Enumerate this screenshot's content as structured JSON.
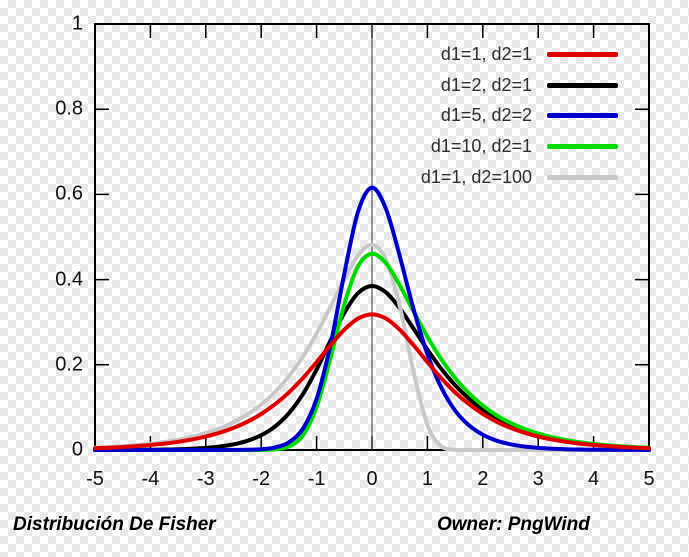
{
  "figure": {
    "checker_color": "#e8e8e8",
    "background_color": "#ffffff"
  },
  "captions": {
    "left": "Distribución De Fisher",
    "right": "Owner: PngWind"
  },
  "chart_data": {
    "type": "line",
    "title": "",
    "xlabel": "",
    "ylabel": "",
    "xlim": [
      -5,
      5
    ],
    "ylim": [
      0,
      1
    ],
    "grid": false,
    "legend_position": "top-right",
    "frame_color": "#000000",
    "zero_axis_x": 0,
    "zero_axis_color": "#333333",
    "x_ticks": [
      -5,
      -4,
      -3,
      -2,
      -1,
      0,
      1,
      2,
      3,
      4,
      5
    ],
    "x_tick_labels": [
      "-5",
      "-4",
      "-3",
      "-2",
      "-1",
      "0",
      "1",
      "2",
      "3",
      "4",
      "5"
    ],
    "y_ticks": [
      0,
      0.2,
      0.4,
      0.6,
      0.8,
      1
    ],
    "y_tick_labels": [
      "0",
      "0.2",
      "0.4",
      "0.6",
      "0.8",
      "1"
    ],
    "x": [
      -5,
      -4.75,
      -4.5,
      -4.25,
      -4,
      -3.75,
      -3.5,
      -3.25,
      -3,
      -2.75,
      -2.5,
      -2.25,
      -2,
      -1.75,
      -1.5,
      -1.25,
      -1,
      -0.75,
      -0.5,
      -0.25,
      0,
      0.25,
      0.5,
      0.75,
      1,
      1.25,
      1.5,
      1.75,
      2,
      2.25,
      2.5,
      2.75,
      3,
      3.25,
      3.5,
      3.75,
      4,
      4.25,
      4.5,
      4.75,
      5
    ],
    "series": [
      {
        "name": "d1=1, d2=1",
        "color": "#e00000",
        "peak": 0.318,
        "values": [
          0.0043,
          0.0055,
          0.0071,
          0.0091,
          0.0117,
          0.015,
          0.0192,
          0.0246,
          0.0316,
          0.0405,
          0.0519,
          0.0664,
          0.0846,
          0.1074,
          0.1353,
          0.1686,
          0.2063,
          0.2459,
          0.2823,
          0.3086,
          0.3183,
          0.3086,
          0.2823,
          0.2459,
          0.2063,
          0.1686,
          0.1353,
          0.1074,
          0.0846,
          0.0664,
          0.0519,
          0.0405,
          0.0316,
          0.0246,
          0.0192,
          0.015,
          0.0117,
          0.0091,
          0.0071,
          0.0055,
          0.0043
        ]
      },
      {
        "name": "d1=2, d2=1",
        "color": "#000000",
        "peak": 0.385,
        "values": [
          0.0001,
          0.0001,
          0.0002,
          0.0004,
          0.0007,
          0.0011,
          0.0018,
          0.003,
          0.0049,
          0.0081,
          0.0132,
          0.0215,
          0.0347,
          0.0553,
          0.0864,
          0.1307,
          0.189,
          0.2566,
          0.3217,
          0.3685,
          0.3849,
          0.3701,
          0.333,
          0.285,
          0.2358,
          0.1907,
          0.1521,
          0.1201,
          0.0944,
          0.0739,
          0.0577,
          0.0451,
          0.0351,
          0.0274,
          0.0213,
          0.0166,
          0.013,
          0.0101,
          0.0079,
          0.0061,
          0.0048
        ]
      },
      {
        "name": "d1=5, d2=2",
        "color": "#0000cc",
        "peak": 0.616,
        "values": [
          0,
          0,
          0,
          0,
          0,
          0,
          0,
          0,
          0,
          0.0001,
          0.0002,
          0.0006,
          0.0019,
          0.0061,
          0.0181,
          0.0496,
          0.12,
          0.2461,
          0.4136,
          0.5598,
          0.616,
          0.5665,
          0.4557,
          0.3311,
          0.225,
          0.1467,
          0.0927,
          0.0579,
          0.0357,
          0.0219,
          0.0134,
          0.0082,
          0.0049,
          0.003,
          0.0018,
          0.0011,
          0.0007,
          0.0004,
          0.0002,
          0.0002,
          0.0001
        ]
      },
      {
        "name": "d1=10, d2=1",
        "color": "#00dc00",
        "peak": 0.461,
        "values": [
          0,
          0,
          0,
          0,
          0,
          0,
          0,
          0,
          0,
          0,
          0,
          0,
          0.0002,
          0.0015,
          0.0082,
          0.0339,
          0.1009,
          0.215,
          0.3419,
          0.4317,
          0.4607,
          0.4386,
          0.3869,
          0.3257,
          0.266,
          0.2132,
          0.169,
          0.1331,
          0.1044,
          0.0812,
          0.0637,
          0.0497,
          0.0387,
          0.0301,
          0.0235,
          0.0183,
          0.0143,
          0.0111,
          0.0086,
          0.0067,
          0.0053
        ]
      },
      {
        "name": "d1=1, d2=100",
        "color": "#c8c8c8",
        "peak": 0.481,
        "values": [
          0.0054,
          0.0069,
          0.0088,
          0.0114,
          0.0146,
          0.0187,
          0.024,
          0.0309,
          0.0396,
          0.0508,
          0.0651,
          0.0834,
          0.1067,
          0.1362,
          0.1732,
          0.2188,
          0.2735,
          0.3359,
          0.401,
          0.4567,
          0.4815,
          0.4474,
          0.3388,
          0.184,
          0.0591,
          0.0084,
          0.0003,
          0,
          0,
          0,
          0,
          0,
          0,
          0,
          0,
          0,
          0,
          0,
          0,
          0,
          0
        ]
      }
    ],
    "draw_order": [
      1,
      4,
      3,
      2,
      0
    ]
  }
}
